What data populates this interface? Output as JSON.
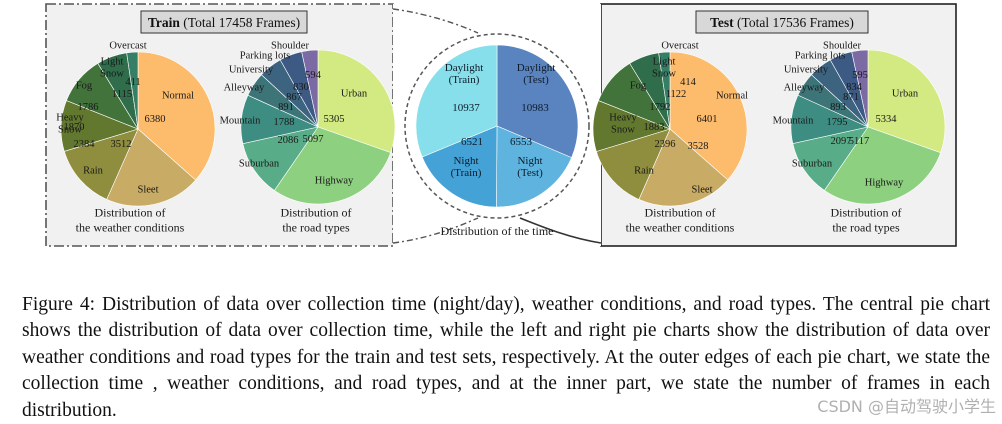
{
  "colors": {
    "panel_bg": "#f1f1f1",
    "title_box_bg": "#d8d8d8",
    "frame_line": "#555555",
    "weather": [
      "#fdbb6c",
      "#c8ab64",
      "#8f8d3e",
      "#62782f",
      "#41733b",
      "#2f6d4b",
      "#367f67",
      "#2e8a78"
    ],
    "road": [
      "#d3ea82",
      "#8dd07f",
      "#58ac88",
      "#3e8d83",
      "#3c7478",
      "#3c6380",
      "#3c5a84",
      "#7c6aa5",
      "#c0b3d6"
    ],
    "time": [
      "#5a84bf",
      "#5eb4de",
      "#44a2d6",
      "#86dfea"
    ]
  },
  "chart_data": [
    {
      "id": "train_weather",
      "type": "pie",
      "panel_title_bold": "Train",
      "panel_title_rest": "(Total 17458 Frames)",
      "caption_lines": [
        "Distribution of",
        "the weather conditions"
      ],
      "slices": [
        {
          "label": "Normal",
          "value": 6380
        },
        {
          "label": "Sleet",
          "value": 3512
        },
        {
          "label": "Rain",
          "value": 2384
        },
        {
          "label": "Heavy Snow",
          "label_lines": [
            "Heavy",
            "Snow"
          ],
          "value": 1870
        },
        {
          "label": "Fog",
          "value": 1786
        },
        {
          "label": "Light Snow",
          "label_lines": [
            "Light",
            "Snow"
          ],
          "value": 1115
        },
        {
          "label": "Overcast",
          "value": 411
        }
      ]
    },
    {
      "id": "train_road",
      "type": "pie",
      "caption_lines": [
        "Distribution of",
        "the road types"
      ],
      "slices": [
        {
          "label": "Urban",
          "value": 5305
        },
        {
          "label": "Highway",
          "value": 5097
        },
        {
          "label": "Suburban",
          "value": 2086
        },
        {
          "label": "Mountain",
          "value": 1788
        },
        {
          "label": "Alleyway",
          "value": 891
        },
        {
          "label": "University",
          "value": 867
        },
        {
          "label": "Parking lots",
          "value": 830
        },
        {
          "label": "Shoulder",
          "value": 594
        }
      ]
    },
    {
      "id": "time",
      "type": "pie",
      "caption": "Distribution of the time",
      "slices": [
        {
          "label": "Daylight (Test)",
          "label_lines": [
            "Daylight",
            "(Test)"
          ],
          "value": 10983
        },
        {
          "label": "Night (Test)",
          "label_lines": [
            "Night",
            "(Test)"
          ],
          "value": 6553
        },
        {
          "label": "Night (Train)",
          "label_lines": [
            "Night",
            "(Train)"
          ],
          "value": 6521
        },
        {
          "label": "Daylight (Train)",
          "label_lines": [
            "Daylight",
            "(Train)"
          ],
          "value": 10937
        }
      ]
    },
    {
      "id": "test_weather",
      "type": "pie",
      "panel_title_bold": "Test",
      "panel_title_rest": "(Total 17536 Frames)",
      "caption_lines": [
        "Distribution of",
        "the weather conditions"
      ],
      "slices": [
        {
          "label": "Normal",
          "value": 6401
        },
        {
          "label": "Sleet",
          "value": 3528
        },
        {
          "label": "Rain",
          "value": 2396
        },
        {
          "label": "Heavy Snow",
          "label_lines": [
            "Heavy",
            "Snow"
          ],
          "value": 1883
        },
        {
          "label": "Fog",
          "value": 1792
        },
        {
          "label": "Light Snow",
          "label_lines": [
            "Light",
            "Snow"
          ],
          "value": 1122
        },
        {
          "label": "Overcast",
          "value": 414
        }
      ]
    },
    {
      "id": "test_road",
      "type": "pie",
      "caption_lines": [
        "Distribution of",
        "the road types"
      ],
      "slices": [
        {
          "label": "Urban",
          "value": 5334
        },
        {
          "label": "Highway",
          "value": 5117
        },
        {
          "label": "Suburban",
          "value": 2097
        },
        {
          "label": "Mountain",
          "value": 1795
        },
        {
          "label": "Alleyway",
          "value": 893
        },
        {
          "label": "University",
          "value": 871
        },
        {
          "label": "Parking lots",
          "value": 834
        },
        {
          "label": "Shoulder",
          "value": 595
        }
      ]
    }
  ],
  "caption": "Figure 4: Distribution of data over collection time (night/day), weather conditions, and road types. The central pie chart shows the distribution of data over collection time, while the left and right pie charts show the distribution of data over weather conditions and road types for the train and test sets, respectively. At the outer edges of each pie chart, we state the collection time , weather conditions, and road types, and at the inner part, we state the number of frames in each distribution.",
  "watermark": "CSDN @自动驾驶小学生"
}
